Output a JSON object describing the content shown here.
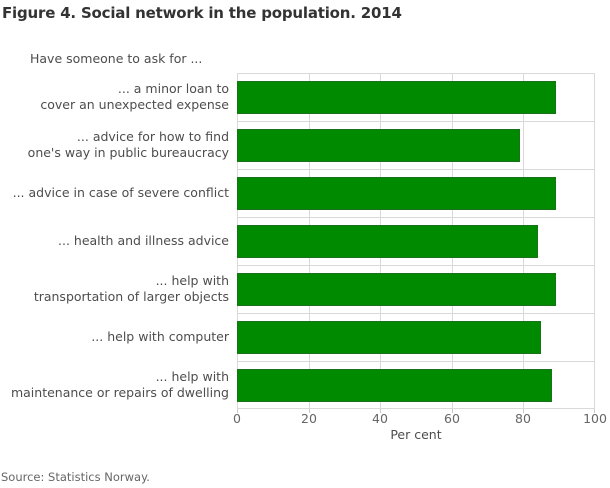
{
  "title": "Figure 4. Social network in the population. 2014",
  "subtitle": "Have someone to ask for ...",
  "source": "Source: Statistics Norway.",
  "colors": {
    "bar": "#008a00",
    "grid": "#d9d9d9",
    "tick_mark": "#c9c9c9",
    "title_text": "#333333",
    "axis_text": "#666666",
    "label_text": "#4d4d4d"
  },
  "chart_data": {
    "type": "bar",
    "orientation": "horizontal",
    "title": "Figure 4. Social network in the population. 2014",
    "subtitle": "Have someone to ask for ...",
    "categories": [
      "... a minor loan to\ncover an unexpected expense",
      "... advice for how to find\none's way in public bureaucracy",
      "... advice in case of severe conflict",
      "... health and illness advice",
      "... help with\ntransportation of larger objects",
      "... help with computer",
      "... help with\nmaintenance or repairs of dwelling"
    ],
    "values": [
      89,
      79,
      89,
      84,
      89,
      85,
      88
    ],
    "xlabel": "Per cent",
    "xlim": [
      0,
      100
    ],
    "xticks": [
      0,
      20,
      40,
      60,
      80,
      100
    ],
    "grid": true,
    "legend": false,
    "source": "Source: Statistics Norway."
  }
}
